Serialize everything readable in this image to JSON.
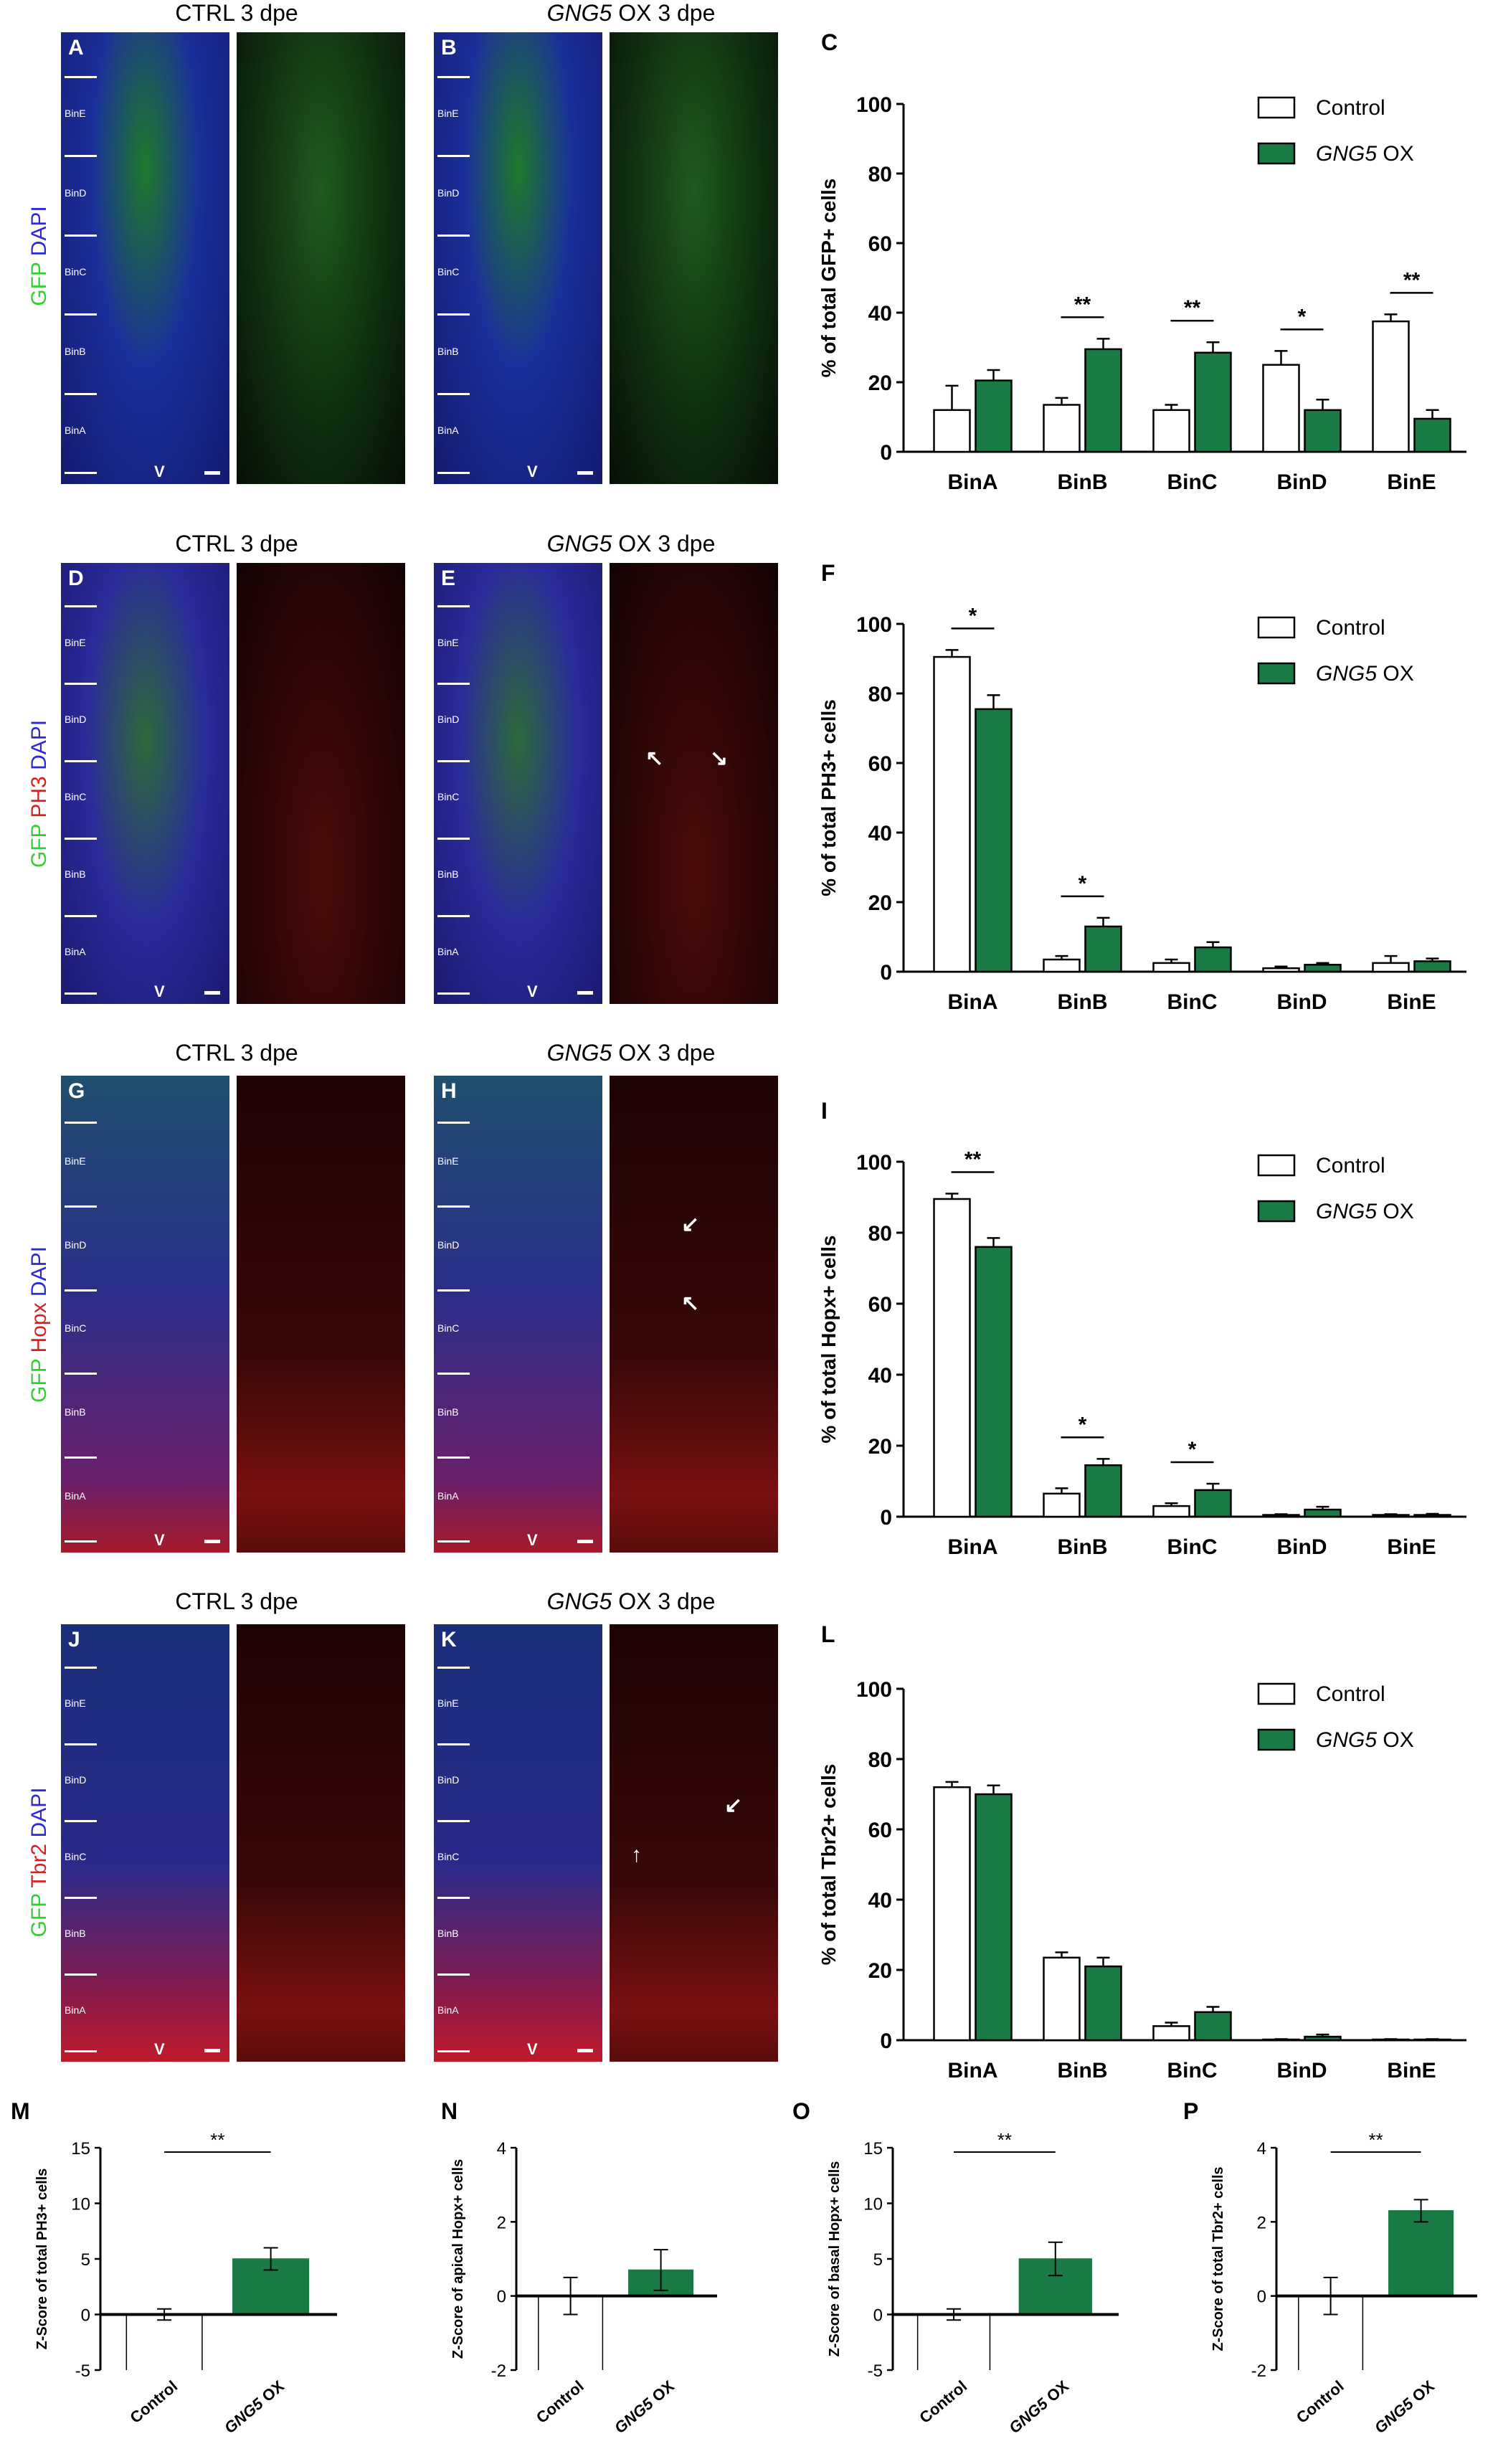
{
  "panels": {
    "A": "A",
    "B": "B",
    "C": "C",
    "D": "D",
    "E": "E",
    "F": "F",
    "G": "G",
    "H": "H",
    "I": "I",
    "J": "J",
    "K": "K",
    "L": "L",
    "M": "M",
    "N": "N",
    "O": "O",
    "P": "P"
  },
  "image_titles": {
    "ctrl": "CTRL 3 dpe",
    "gng5_gene": "GNG5",
    "gng5_rest": " OX 3 dpe"
  },
  "bins": [
    "BinE",
    "BinD",
    "BinC",
    "BinB",
    "BinA"
  ],
  "ventricle_label": "V",
  "stain_labels": {
    "row1": [
      {
        "text": "GFP",
        "color": "#2fd02f"
      },
      {
        "text": " ",
        "color": "#000"
      },
      {
        "text": "DAPI",
        "color": "#2a2ad8"
      }
    ],
    "row2": [
      {
        "text": "GFP",
        "color": "#2fd02f"
      },
      {
        "text": " ",
        "color": "#000"
      },
      {
        "text": "PH3",
        "color": "#d82020"
      },
      {
        "text": " ",
        "color": "#000"
      },
      {
        "text": "DAPI",
        "color": "#2a2ad8"
      }
    ],
    "row3": [
      {
        "text": "GFP",
        "color": "#2fd02f"
      },
      {
        "text": " ",
        "color": "#000"
      },
      {
        "text": "Hopx",
        "color": "#d82020"
      },
      {
        "text": " ",
        "color": "#000"
      },
      {
        "text": "DAPI",
        "color": "#2a2ad8"
      }
    ],
    "row4": [
      {
        "text": "GFP",
        "color": "#2fd02f"
      },
      {
        "text": " ",
        "color": "#000"
      },
      {
        "text": "Tbr2",
        "color": "#d82020"
      },
      {
        "text": " ",
        "color": "#000"
      },
      {
        "text": "DAPI",
        "color": "#2a2ad8"
      }
    ]
  },
  "legend": {
    "control": "Control",
    "gng5_gene": "GNG5",
    "gng5_suffix": " OX"
  },
  "colors": {
    "control_fill": "#ffffff",
    "gng5_fill": "#1a7a46",
    "axis": "#000000"
  },
  "chart_data": [
    {
      "id": "C",
      "type": "bar",
      "ylabel": "% of total GFP+ cells",
      "ylim": [
        0,
        100
      ],
      "yticks": [
        0,
        20,
        40,
        60,
        80,
        100
      ],
      "categories": [
        "BinA",
        "BinB",
        "BinC",
        "BinD",
        "BinE"
      ],
      "series": [
        {
          "name": "Control",
          "values": [
            12,
            13.5,
            12,
            25,
            37.5
          ],
          "errors": [
            7,
            2,
            1.5,
            4,
            2
          ]
        },
        {
          "name": "GNG5 OX",
          "values": [
            20.5,
            29.5,
            28.5,
            12,
            9.5
          ],
          "errors": [
            3,
            3,
            3,
            3,
            2.5
          ]
        }
      ],
      "significance": [
        "",
        "**",
        "**",
        "*",
        "**"
      ]
    },
    {
      "id": "F",
      "type": "bar",
      "ylabel": "% of total PH3+ cells",
      "ylim": [
        0,
        100
      ],
      "yticks": [
        0,
        20,
        40,
        60,
        80,
        100
      ],
      "categories": [
        "BinA",
        "BinB",
        "BinC",
        "BinD",
        "BinE"
      ],
      "series": [
        {
          "name": "Control",
          "values": [
            90.5,
            3.5,
            2.5,
            1,
            2.5
          ],
          "errors": [
            2,
            1,
            1,
            0.5,
            2
          ]
        },
        {
          "name": "GNG5 OX",
          "values": [
            75.5,
            13,
            7,
            2,
            3
          ],
          "errors": [
            4,
            2.5,
            1.5,
            0.5,
            0.8
          ]
        }
      ],
      "significance": [
        "*",
        "*",
        "",
        "",
        ""
      ]
    },
    {
      "id": "I",
      "type": "bar",
      "ylabel": "% of total Hopx+ cells",
      "ylim": [
        0,
        100
      ],
      "yticks": [
        0,
        20,
        40,
        60,
        80,
        100
      ],
      "categories": [
        "BinA",
        "BinB",
        "BinC",
        "BinD",
        "BinE"
      ],
      "series": [
        {
          "name": "Control",
          "values": [
            89.5,
            6.5,
            3,
            0.5,
            0.5
          ],
          "errors": [
            1.5,
            1.5,
            0.8,
            0.2,
            0.2
          ]
        },
        {
          "name": "GNG5 OX",
          "values": [
            76,
            14.5,
            7.5,
            2,
            0.5
          ],
          "errors": [
            2.5,
            1.8,
            1.8,
            0.8,
            0.3
          ]
        }
      ],
      "significance": [
        "**",
        "*",
        "*",
        "",
        ""
      ]
    },
    {
      "id": "L",
      "type": "bar",
      "ylabel": "% of total Tbr2+ cells",
      "ylim": [
        0,
        100
      ],
      "yticks": [
        0,
        20,
        40,
        60,
        80,
        100
      ],
      "categories": [
        "BinA",
        "BinB",
        "BinC",
        "BinD",
        "BinE"
      ],
      "series": [
        {
          "name": "Control",
          "values": [
            72,
            23.5,
            4,
            0.2,
            0.2
          ],
          "errors": [
            1.5,
            1.5,
            1,
            0.1,
            0.1
          ]
        },
        {
          "name": "GNG5 OX",
          "values": [
            70,
            21,
            8,
            1,
            0.2
          ],
          "errors": [
            2.5,
            2.5,
            1.5,
            0.6,
            0.1
          ]
        }
      ],
      "significance": [
        "",
        "",
        "",
        "",
        ""
      ]
    },
    {
      "id": "M",
      "type": "bar",
      "ylabel": "Z-Score of total  PH3+ cells",
      "ylim": [
        -5,
        15
      ],
      "yticks": [
        -5,
        0,
        5,
        10,
        15
      ],
      "categories": [
        "Control",
        "GNG5 OX"
      ],
      "values": [
        0,
        5
      ],
      "errors": [
        0.5,
        1
      ],
      "significance": "**"
    },
    {
      "id": "N",
      "type": "bar",
      "ylabel": "Z-Score of apical  Hopx+ cells",
      "ylim": [
        -2,
        4
      ],
      "yticks": [
        -2,
        0,
        2,
        4
      ],
      "categories": [
        "Control",
        "GNG5 OX"
      ],
      "values": [
        0,
        0.7
      ],
      "errors": [
        0.5,
        0.55
      ],
      "significance": ""
    },
    {
      "id": "O",
      "type": "bar",
      "ylabel": "Z-Score of  basal  Hopx+ cells",
      "ylim": [
        -5,
        15
      ],
      "yticks": [
        -5,
        0,
        5,
        10,
        15
      ],
      "categories": [
        "Control",
        "GNG5 OX"
      ],
      "values": [
        0,
        5
      ],
      "errors": [
        0.5,
        1.5
      ],
      "significance": "**"
    },
    {
      "id": "P",
      "type": "bar",
      "ylabel": "Z-Score of total  Tbr2+ cells",
      "ylim": [
        -2,
        4
      ],
      "yticks": [
        -2,
        0,
        2,
        4
      ],
      "categories": [
        "Control",
        "GNG5 OX"
      ],
      "values": [
        0,
        2.3
      ],
      "errors": [
        0.5,
        0.3
      ],
      "significance": "**"
    }
  ]
}
